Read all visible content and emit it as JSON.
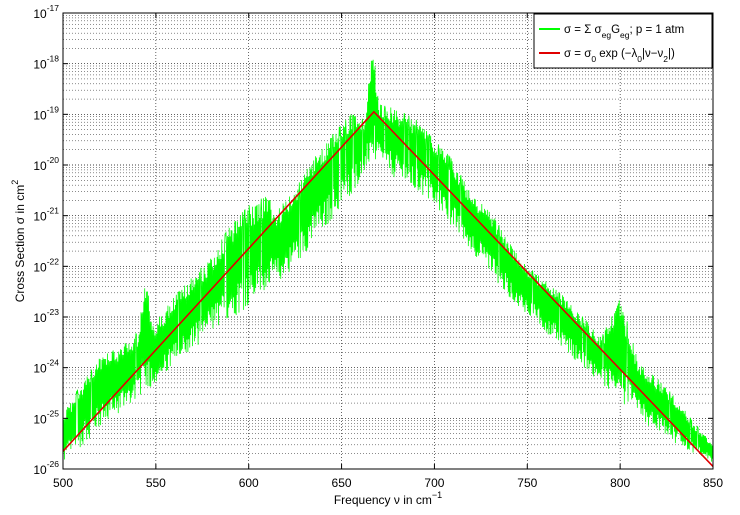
{
  "chart_data": {
    "type": "line",
    "title": "",
    "xlabel": "Frequency ν in cm",
    "xlabel_exponent": "−1",
    "ylabel": "Cross Section σ in cm",
    "ylabel_exponent": "2",
    "x_scale": "linear",
    "y_scale": "log",
    "xlim": [
      500,
      850
    ],
    "ylim": [
      1e-26,
      1e-17
    ],
    "x_ticks": [
      500,
      550,
      600,
      650,
      700,
      750,
      800,
      850
    ],
    "x_tick_labels": [
      "500",
      "550",
      "600",
      "650",
      "700",
      "750",
      "800",
      "850"
    ],
    "y_tick_exponents": [
      -26,
      -25,
      -24,
      -23,
      -22,
      -21,
      -20,
      -19,
      -18,
      -17
    ],
    "grid": true,
    "grid_style": "dotted, with minor log gridlines",
    "legend_position": "top-right",
    "legend": [
      {
        "parts": [
          "σ = Σ σ",
          "eg",
          "G",
          "eg",
          "; p = 1 atm"
        ]
      },
      {
        "parts": [
          "σ = σ",
          "0",
          " exp (−λ",
          "0",
          "|ν−ν",
          "2",
          "|)"
        ]
      }
    ],
    "series": [
      {
        "name": "σ = Σ σegGeg; p = 1 atm",
        "color": "#00ff00",
        "style": "dense line-by-line absorption spectrum; upper envelope (x, log10 σ)",
        "envelope_upper": [
          [
            500,
            -24.9
          ],
          [
            510,
            -24.3
          ],
          [
            520,
            -23.8
          ],
          [
            530,
            -23.6
          ],
          [
            540,
            -23.3
          ],
          [
            545,
            -22.2
          ],
          [
            548,
            -23.2
          ],
          [
            560,
            -22.6
          ],
          [
            570,
            -22.2
          ],
          [
            580,
            -21.8
          ],
          [
            590,
            -21.2
          ],
          [
            600,
            -20.8
          ],
          [
            610,
            -20.6
          ],
          [
            615,
            -20.9
          ],
          [
            625,
            -20.5
          ],
          [
            635,
            -19.8
          ],
          [
            645,
            -19.4
          ],
          [
            655,
            -19.0
          ],
          [
            662,
            -19.1
          ],
          [
            667,
            -17.6
          ],
          [
            670,
            -18.8
          ],
          [
            680,
            -18.9
          ],
          [
            690,
            -19.1
          ],
          [
            700,
            -19.5
          ],
          [
            710,
            -19.9
          ],
          [
            720,
            -20.6
          ],
          [
            730,
            -20.9
          ],
          [
            740,
            -21.5
          ],
          [
            750,
            -22.0
          ],
          [
            760,
            -22.3
          ],
          [
            770,
            -22.6
          ],
          [
            780,
            -23.0
          ],
          [
            790,
            -23.4
          ],
          [
            800,
            -22.6
          ],
          [
            810,
            -23.9
          ],
          [
            820,
            -24.2
          ],
          [
            830,
            -24.6
          ],
          [
            840,
            -25.1
          ],
          [
            850,
            -25.5
          ]
        ],
        "envelope_lower": [
          [
            500,
            -25.9
          ],
          [
            520,
            -25.2
          ],
          [
            540,
            -24.6
          ],
          [
            560,
            -24.0
          ],
          [
            580,
            -23.3
          ],
          [
            600,
            -22.8
          ],
          [
            620,
            -22.2
          ],
          [
            640,
            -21.3
          ],
          [
            655,
            -20.6
          ],
          [
            667,
            -19.9
          ],
          [
            680,
            -20.3
          ],
          [
            700,
            -20.8
          ],
          [
            720,
            -21.7
          ],
          [
            740,
            -22.6
          ],
          [
            760,
            -23.3
          ],
          [
            780,
            -24.0
          ],
          [
            800,
            -24.7
          ],
          [
            820,
            -25.3
          ],
          [
            840,
            -25.7
          ],
          [
            850,
            -25.9
          ]
        ]
      },
      {
        "name": "σ = σ0 exp (−λ0|ν−ν2|)",
        "color": "#e00000",
        "style": "straight lines on log scale (exponential model)",
        "x": [
          500,
          667.4,
          850
        ],
        "log10_y": [
          -25.65,
          -18.95,
          -25.95
        ]
      }
    ]
  }
}
